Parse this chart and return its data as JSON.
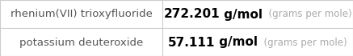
{
  "rows": [
    {
      "name": "rhenium(VII) trioxyfluoride",
      "value": "272.201",
      "unit": "g/mol",
      "unit_long": "(grams per mole)"
    },
    {
      "name": "potassium deuteroxide",
      "value": "57.111",
      "unit": "g/mol",
      "unit_long": "(grams per mole)"
    }
  ],
  "col_split": 0.46,
  "background_color": "#ffffff",
  "border_color": "#cccccc",
  "text_color_name": "#555555",
  "text_color_value": "#000000",
  "text_color_unit": "#000000",
  "text_color_unit_long": "#aaaaaa",
  "font_size_name": 9.5,
  "font_size_value": 11.0,
  "font_size_unit": 11.0,
  "font_size_unit_long": 8.5
}
